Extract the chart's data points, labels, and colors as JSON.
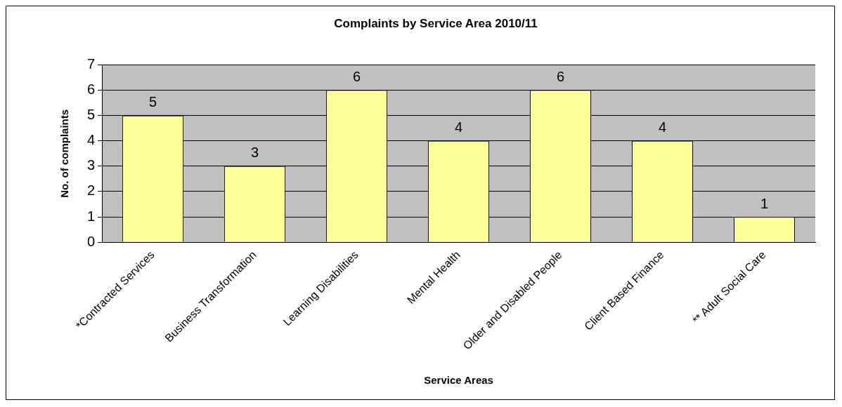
{
  "chart_data": {
    "type": "bar",
    "title": "Complaints by Service Area 2010/11",
    "xlabel": "Service Areas",
    "ylabel": "No. of complaints",
    "categories": [
      "*Contracted Services",
      "Business Transformation",
      "Learning Disabilities",
      "Mental Health",
      "Older and Disabled People",
      "Client Based Finance",
      "** Adult Social Care"
    ],
    "values": [
      5,
      3,
      6,
      4,
      6,
      4,
      1
    ],
    "color": "#ffff99",
    "ylim": [
      0,
      7
    ],
    "yticks": [
      0,
      1,
      2,
      3,
      4,
      5,
      6,
      7
    ],
    "grid": "y",
    "legend": false,
    "data_labels": true
  }
}
